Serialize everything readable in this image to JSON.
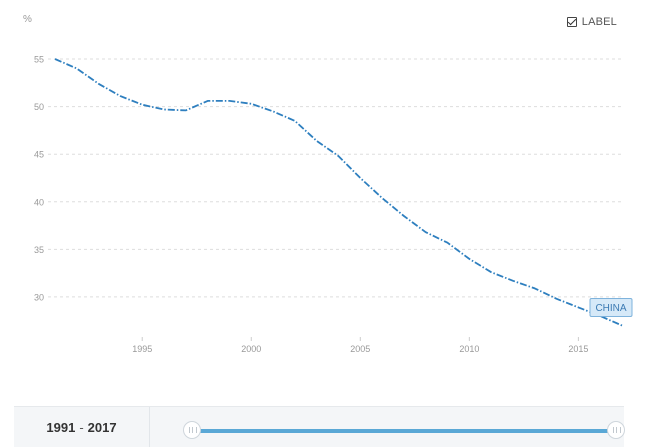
{
  "controls": {
    "label_toggle": "LABEL",
    "label_checked": true
  },
  "range": {
    "start": "1991",
    "separator": "-",
    "end": "2017",
    "min_year": 1991,
    "max_year": 2017,
    "selected": [
      1991,
      2017
    ]
  },
  "colors": {
    "line": "#2e7fbf",
    "grid": "#dddddd",
    "axis_text": "#999999",
    "callout_fill": "#d6e9f8",
    "callout_border": "#7fb3dc",
    "callout_text": "#3b7ab3",
    "slider": "#5aa8d6"
  },
  "chart_data": {
    "type": "line",
    "ylabel": "%",
    "ylim": [
      26,
      57
    ],
    "yticks": [
      30,
      35,
      40,
      45,
      50,
      55
    ],
    "xlim": [
      1991,
      2017
    ],
    "xticks": [
      1995,
      2000,
      2005,
      2010,
      2015
    ],
    "grid": true,
    "line_style": "dash-dot",
    "series": [
      {
        "name": "CHINA",
        "x": [
          1991,
          1992,
          1993,
          1994,
          1995,
          1996,
          1997,
          1998,
          1999,
          2000,
          2001,
          2002,
          2003,
          2004,
          2005,
          2006,
          2007,
          2008,
          2009,
          2010,
          2011,
          2012,
          2013,
          2014,
          2015,
          2016,
          2017
        ],
        "y": [
          55.0,
          54.0,
          52.4,
          51.1,
          50.2,
          49.7,
          49.6,
          50.6,
          50.6,
          50.3,
          49.5,
          48.5,
          46.4,
          44.8,
          42.5,
          40.4,
          38.5,
          36.8,
          35.7,
          34.0,
          32.6,
          31.7,
          30.9,
          29.8,
          28.9,
          28.0,
          27.0
        ]
      }
    ]
  }
}
